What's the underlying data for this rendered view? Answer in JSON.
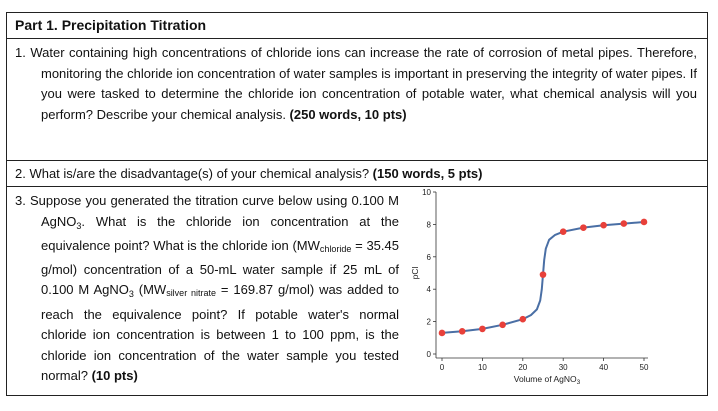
{
  "header": {
    "title": "Part 1. Precipitation Titration"
  },
  "questions": {
    "q1": {
      "text": "1. Water containing high concentrations of chloride ions can increase the rate of corrosion of metal pipes. Therefore, monitoring the chloride ion concentration of water samples is important in preserving the integrity of water pipes. If you were tasked to determine the chloride ion concentration of potable water, what chemical analysis will you perform? Describe your chemical analysis. ",
      "points": "(250 words, 10 pts)"
    },
    "q2": {
      "text": "2. What is/are the disadvantage(s) of your chemical analysis? ",
      "points": "(150 words, 5 pts)"
    },
    "q3": {
      "part1": "3. Suppose you generated the titration curve below using 0.100 M AgNO",
      "sub3a": "3",
      "part2": ". What is the chloride ion concentration at the equivalence point? What is the chloride ion (MW",
      "sub_chloride": "chloride",
      "part3": " = 35.45 g/mol) concentration of a 50-mL water sample if 25 mL of 0.100 M AgNO",
      "sub3b": "3",
      "part4": " (MW",
      "sub_silver": "silver nitrate",
      "part5": " = 169.87 g/mol) was added to reach the equivalence point? If potable water's normal chloride ion concentration is between 1 to 100 ppm, is the chloride ion concentration of the water sample you tested normal? ",
      "points": "(10 pts)"
    }
  },
  "chart_data": {
    "type": "line",
    "xlabel": "Volume of AgNO3",
    "ylabel": "pCl",
    "xlim": [
      0,
      50
    ],
    "ylim": [
      0,
      10
    ],
    "xticks": [
      0,
      10,
      20,
      30,
      40,
      50
    ],
    "yticks": [
      0,
      2,
      4,
      6,
      8,
      10
    ],
    "grid": false,
    "colors": {
      "curve": "#4a6fa5",
      "points": "#e8403a"
    },
    "points": [
      {
        "x": 0,
        "y": 1.3
      },
      {
        "x": 5,
        "y": 1.4
      },
      {
        "x": 10,
        "y": 1.55
      },
      {
        "x": 15,
        "y": 1.8
      },
      {
        "x": 20,
        "y": 2.15
      },
      {
        "x": 25,
        "y": 4.9
      },
      {
        "x": 30,
        "y": 7.55
      },
      {
        "x": 35,
        "y": 7.8
      },
      {
        "x": 40,
        "y": 7.95
      },
      {
        "x": 45,
        "y": 8.05
      },
      {
        "x": 50,
        "y": 8.15
      }
    ],
    "curve": [
      {
        "x": 0,
        "y": 1.3
      },
      {
        "x": 5,
        "y": 1.4
      },
      {
        "x": 10,
        "y": 1.55
      },
      {
        "x": 15,
        "y": 1.8
      },
      {
        "x": 20,
        "y": 2.15
      },
      {
        "x": 22,
        "y": 2.4
      },
      {
        "x": 23.5,
        "y": 2.75
      },
      {
        "x": 24.3,
        "y": 3.3
      },
      {
        "x": 24.7,
        "y": 4.0
      },
      {
        "x": 25,
        "y": 4.9
      },
      {
        "x": 25.3,
        "y": 5.8
      },
      {
        "x": 25.7,
        "y": 6.5
      },
      {
        "x": 26.5,
        "y": 7.05
      },
      {
        "x": 28,
        "y": 7.35
      },
      {
        "x": 30,
        "y": 7.55
      },
      {
        "x": 35,
        "y": 7.8
      },
      {
        "x": 40,
        "y": 7.95
      },
      {
        "x": 45,
        "y": 8.05
      },
      {
        "x": 50,
        "y": 8.15
      }
    ]
  }
}
